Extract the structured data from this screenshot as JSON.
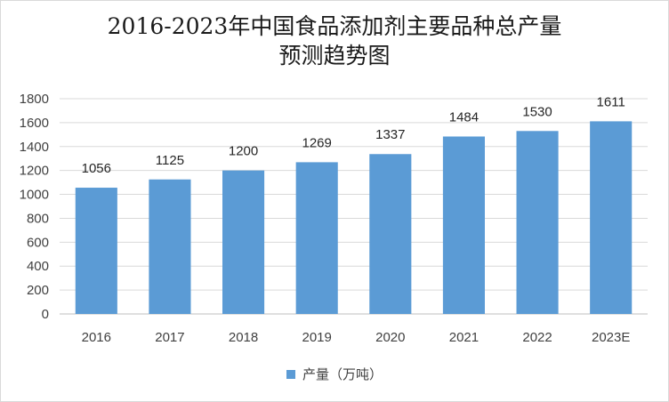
{
  "chart_data": {
    "type": "bar",
    "title": [
      "2016-2023年中国食品添加剂主要品种总产量",
      "预测趋势图"
    ],
    "categories": [
      "2016",
      "2017",
      "2018",
      "2019",
      "2020",
      "2021",
      "2022",
      "2023E"
    ],
    "series": [
      {
        "name": "产量（万吨）",
        "values": [
          1056,
          1125,
          1200,
          1269,
          1337,
          1484,
          1530,
          1611
        ],
        "color": "#5b9bd5"
      }
    ],
    "ylim": [
      0,
      1800
    ],
    "yticks": [
      0,
      200,
      400,
      600,
      800,
      1000,
      1200,
      1400,
      1600,
      1800
    ],
    "grid": true,
    "legend": "bottom",
    "data_labels": true
  }
}
